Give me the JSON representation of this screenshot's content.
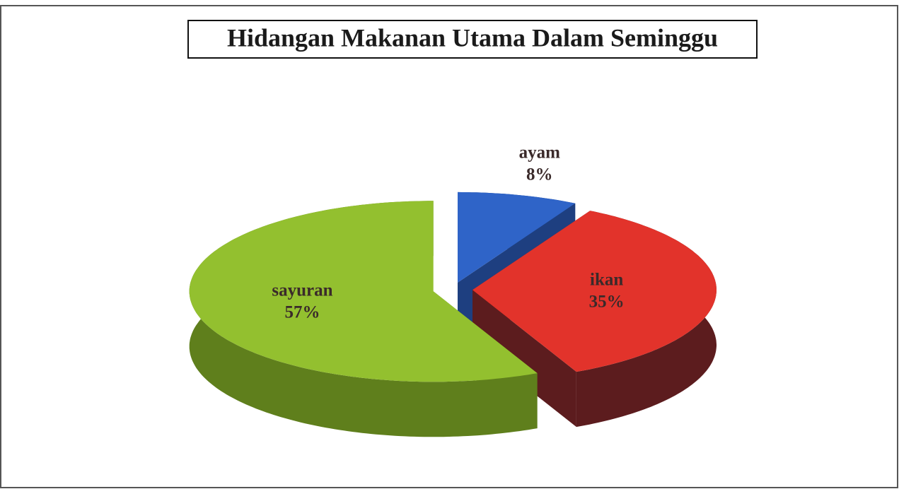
{
  "chart_data": {
    "type": "pie",
    "title": "Hidangan Makanan Utama Dalam Seminggu",
    "categories": [
      "ayam",
      "ikan",
      "sayuran"
    ],
    "values": [
      8,
      35,
      57
    ],
    "value_labels": [
      "8%",
      "35%",
      "57%"
    ],
    "colors": [
      "#2f64c8",
      "#e2332b",
      "#93c02f"
    ],
    "side_colors": [
      "#1e3f80",
      "#5c1c1e",
      "#5f7f1c"
    ]
  }
}
